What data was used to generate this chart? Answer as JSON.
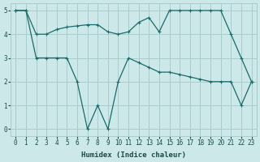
{
  "xlabel": "Humidex (Indice chaleur)",
  "ylabel": "",
  "background_color": "#cce8e8",
  "grid_color": "#aacccc",
  "line_color": "#1a6b6b",
  "xlim": [
    -0.5,
    23.5
  ],
  "ylim": [
    -0.3,
    5.3
  ],
  "xticks": [
    0,
    1,
    2,
    3,
    4,
    5,
    6,
    7,
    8,
    9,
    10,
    11,
    12,
    13,
    14,
    15,
    16,
    17,
    18,
    19,
    20,
    21,
    22,
    23
  ],
  "yticks": [
    0,
    1,
    2,
    3,
    4,
    5
  ],
  "line1_x": [
    0,
    1,
    2,
    3,
    4,
    5,
    6,
    7,
    8,
    9,
    10,
    11,
    12,
    13,
    14,
    15,
    16,
    17,
    18,
    19,
    20,
    21,
    22,
    23
  ],
  "line1_y": [
    5,
    5,
    4,
    4,
    4.2,
    4.3,
    4.35,
    4.4,
    4.4,
    4.1,
    4.0,
    4.1,
    4.5,
    4.7,
    4.1,
    5,
    5,
    5,
    5,
    5,
    5,
    4,
    3,
    2
  ],
  "line2_x": [
    0,
    1,
    2,
    3,
    4,
    5,
    6,
    7,
    8,
    9,
    10,
    11,
    12,
    13,
    14,
    15,
    16,
    17,
    18,
    19,
    20,
    21,
    22,
    23
  ],
  "line2_y": [
    5,
    5,
    3,
    3,
    3,
    3,
    2,
    0,
    1,
    0,
    2,
    3,
    2.8,
    2.6,
    2.4,
    2.4,
    2.3,
    2.2,
    2.1,
    2.0,
    2.0,
    2.0,
    1.0,
    2.0
  ]
}
